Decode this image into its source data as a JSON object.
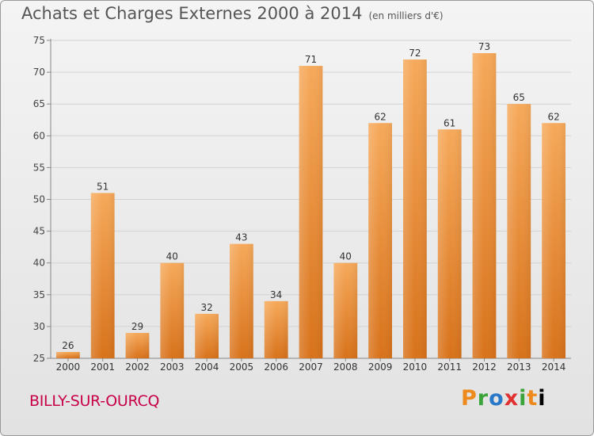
{
  "chart_data": {
    "type": "bar",
    "title": "Achats et Charges Externes 2000 à 2014",
    "subtitle": "(en milliers d'€)",
    "xlabel": "",
    "ylabel": "",
    "categories": [
      "2000",
      "2001",
      "2002",
      "2003",
      "2004",
      "2005",
      "2006",
      "2007",
      "2008",
      "2009",
      "2010",
      "2011",
      "2012",
      "2013",
      "2014"
    ],
    "values": [
      26,
      51,
      29,
      40,
      32,
      43,
      34,
      71,
      40,
      62,
      72,
      61,
      73,
      65,
      62
    ],
    "ylim": [
      25,
      75
    ],
    "yticks": [
      25,
      30,
      35,
      40,
      45,
      50,
      55,
      60,
      65,
      70,
      75
    ],
    "grid": true,
    "bar_color": "#e8892e"
  },
  "footer": {
    "place": "BILLY-SUR-OURCQ",
    "logo_letters": [
      "P",
      "r",
      "o",
      "x",
      "i",
      "t",
      "i"
    ]
  }
}
